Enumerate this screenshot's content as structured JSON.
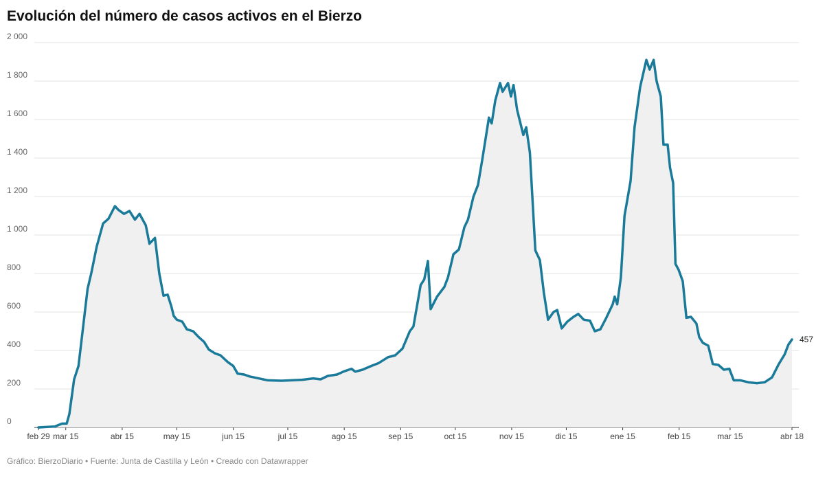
{
  "chart_data": {
    "type": "line",
    "title": "Evolución del número de casos activos en el Bierzo",
    "footer": "Gráfico: BierzoDiario • Fuente: Junta de Castilla y León • Creado con Datawrapper",
    "series": [
      {
        "name": "Casos activos",
        "color": "#1a7a99",
        "x": [
          0,
          9,
          13,
          15.5,
          17,
          19.6,
          22,
          24,
          27,
          29,
          32,
          35.5,
          38.5,
          42,
          44,
          47,
          50,
          53,
          55.5,
          59,
          61,
          64,
          66.4,
          68.7,
          71,
          73,
          74.3,
          76,
          79,
          81.5,
          85,
          88,
          91,
          93.6,
          97,
          100,
          104,
          107,
          109.4,
          113,
          116,
          121,
          126,
          133.6,
          139,
          145,
          151,
          155,
          159,
          164,
          167.5,
          172,
          174,
          178,
          183,
          187,
          192,
          196,
          200,
          204,
          206,
          210,
          212,
          214,
          215.5,
          219,
          223,
          225,
          228,
          231,
          234,
          236,
          239,
          241.5,
          244,
          247.5,
          249,
          251,
          253.6,
          255,
          258,
          259.6,
          261,
          263,
          266.4,
          268,
          270,
          273,
          275.5,
          277.7,
          280,
          283,
          285,
          287.5,
          290.6,
          294,
          296.6,
          299.6,
          303,
          305.7,
          308.7,
          312,
          315.5,
          316.6,
          318,
          320,
          322,
          325.3,
          327.5,
          330.6,
          334,
          335.8,
          338,
          339.6,
          341.9,
          343.4,
          345.7,
          347,
          348.7,
          350,
          351.7,
          354,
          356,
          358.5,
          361.5,
          363,
          365,
          368,
          370.5,
          373.6,
          376.6,
          379.6,
          382,
          385.7,
          390,
          394.7,
          399,
          403,
          406.8,
          410,
          412,
          414
        ],
        "values": [
          0,
          5,
          20,
          20,
          70,
          250,
          320,
          480,
          720,
          800,
          940,
          1060,
          1085,
          1150,
          1130,
          1110,
          1125,
          1080,
          1110,
          1050,
          955,
          985,
          800,
          685,
          690,
          630,
          580,
          560,
          550,
          510,
          500,
          470,
          445,
          405,
          385,
          375,
          340,
          320,
          280,
          275,
          265,
          255,
          245,
          243,
          245,
          248,
          255,
          250,
          268,
          275,
          290,
          305,
          290,
          300,
          320,
          335,
          365,
          375,
          410,
          500,
          525,
          740,
          770,
          865,
          615,
          680,
          730,
          780,
          900,
          925,
          1040,
          1080,
          1200,
          1260,
          1400,
          1610,
          1580,
          1700,
          1790,
          1745,
          1790,
          1720,
          1780,
          1650,
          1520,
          1560,
          1430,
          920,
          870,
          700,
          560,
          600,
          610,
          515,
          550,
          575,
          590,
          560,
          555,
          500,
          510,
          570,
          640,
          680,
          640,
          780,
          1100,
          1280,
          1560,
          1770,
          1910,
          1860,
          1910,
          1800,
          1720,
          1470,
          1470,
          1350,
          1270,
          850,
          820,
          760,
          570,
          575,
          540,
          470,
          440,
          425,
          330,
          325,
          300,
          305,
          245,
          245,
          235,
          230,
          235,
          260,
          330,
          380,
          430,
          457
        ],
        "value_labels": {
          "last": "457"
        }
      }
    ],
    "xlim": [
      0,
      414
    ],
    "xticks": [
      {
        "value": 0,
        "label": "feb 29"
      },
      {
        "value": 15,
        "label": "mar 15"
      },
      {
        "value": 46,
        "label": "abr 15"
      },
      {
        "value": 76,
        "label": "may 15"
      },
      {
        "value": 107,
        "label": "jun 15"
      },
      {
        "value": 137,
        "label": "jul 15"
      },
      {
        "value": 168,
        "label": "ago 15"
      },
      {
        "value": 199,
        "label": "sep 15"
      },
      {
        "value": 229,
        "label": "oct 15"
      },
      {
        "value": 260,
        "label": "nov 15"
      },
      {
        "value": 290,
        "label": "dic 15"
      },
      {
        "value": 321,
        "label": "ene 15"
      },
      {
        "value": 352,
        "label": "feb 15"
      },
      {
        "value": 380,
        "label": "mar 15"
      },
      {
        "value": 414,
        "label": "abr 18"
      }
    ],
    "ylim": [
      0,
      2000
    ],
    "yticks": [
      0,
      200,
      400,
      600,
      800,
      {
        "value": 1000,
        "label": "1 000"
      },
      {
        "value": 1200,
        "label": "1 200"
      },
      {
        "value": 1400,
        "label": "1 400"
      },
      {
        "value": 1600,
        "label": "1 600"
      },
      {
        "value": 1800,
        "label": "1 800"
      },
      {
        "value": 2000,
        "label": "2 000"
      }
    ],
    "grid": true,
    "area_color": "#f0f0f0"
  }
}
